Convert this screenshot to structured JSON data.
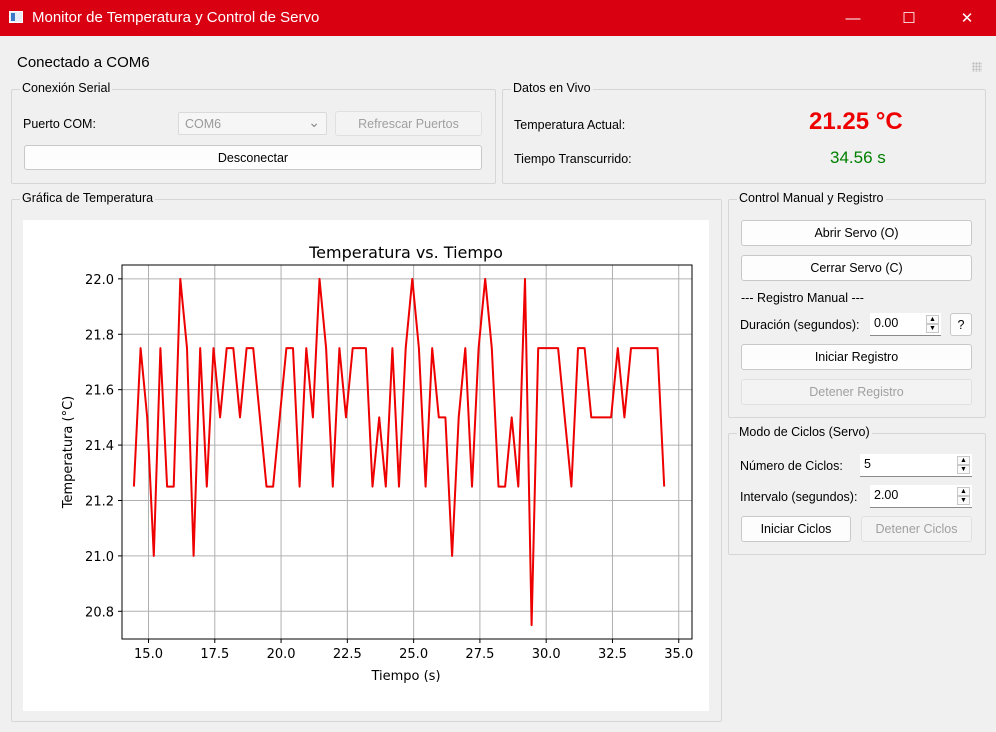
{
  "window": {
    "title": "Monitor de Temperatura y Control de Servo",
    "minimize": "—",
    "maximize": "☐",
    "close": "✕"
  },
  "status_text": "Conectado a COM6",
  "serial": {
    "title": "Conexión Serial",
    "port_label": "Puerto COM:",
    "port_value": "COM6",
    "refresh_label": "Refrescar Puertos",
    "disconnect_label": "Desconectar"
  },
  "live": {
    "title": "Datos en Vivo",
    "temp_label": "Temperatura Actual:",
    "temp_value": "21.25 °C",
    "time_label": "Tiempo Transcurrido:",
    "time_value": "34.56 s",
    "temp_color": "#ee0000",
    "time_color": "#008000"
  },
  "chart_group": {
    "title": "Gráfica de Temperatura"
  },
  "manual": {
    "title": "Control Manual y Registro",
    "open_label": "Abrir Servo (O)",
    "close_label": "Cerrar Servo (C)",
    "section_label": "--- Registro Manual ---",
    "duration_label": "Duración (segundos):",
    "duration_value": "0.00",
    "help_label": "?",
    "start_label": "Iniciar Registro",
    "stop_label": "Detener Registro"
  },
  "cycles": {
    "title": "Modo de Ciclos (Servo)",
    "count_label": "Número de Ciclos:",
    "count_value": "5",
    "interval_label": "Intervalo (segundos):",
    "interval_value": "2.00",
    "start_label": "Iniciar Ciclos",
    "stop_label": "Detener Ciclos"
  },
  "chart_data": {
    "type": "line",
    "title": "Temperatura vs. Tiempo",
    "xlabel": "Tiempo (s)",
    "ylabel": "Temperatura (°C)",
    "xlim": [
      14.0,
      35.5
    ],
    "ylim": [
      20.7,
      22.05
    ],
    "xticks": [
      "15.0",
      "17.5",
      "20.0",
      "22.5",
      "25.0",
      "27.5",
      "30.0",
      "32.5",
      "35.0"
    ],
    "yticks": [
      "20.8",
      "21.0",
      "21.2",
      "21.4",
      "21.6",
      "21.8",
      "22.0"
    ],
    "grid": true,
    "color": "#ee0000",
    "series": [
      {
        "x": [
          14.45,
          14.7,
          14.95,
          15.2,
          15.45,
          15.7,
          15.95,
          16.2,
          16.45,
          16.7,
          16.95,
          17.2,
          17.45,
          17.7,
          17.95,
          18.2,
          18.45,
          18.7,
          18.95,
          19.2,
          19.45,
          19.7,
          19.95,
          20.2,
          20.45,
          20.7,
          20.95,
          21.2,
          21.45,
          21.7,
          21.95,
          22.2,
          22.45,
          22.7,
          22.95,
          23.2,
          23.45,
          23.7,
          23.95,
          24.2,
          24.45,
          24.7,
          24.95,
          25.2,
          25.45,
          25.7,
          25.95,
          26.2,
          26.45,
          26.7,
          26.95,
          27.2,
          27.45,
          27.7,
          27.95,
          28.2,
          28.45,
          28.7,
          28.95,
          29.2,
          29.45,
          29.7,
          29.95,
          30.2,
          30.45,
          30.7,
          30.95,
          31.2,
          31.45,
          31.7,
          31.95,
          32.2,
          32.45,
          32.7,
          32.95,
          33.2,
          33.45,
          33.7,
          33.95,
          34.2,
          34.45
        ],
        "y": [
          21.25,
          21.75,
          21.5,
          21.0,
          21.75,
          21.25,
          21.25,
          22.0,
          21.75,
          21.0,
          21.75,
          21.25,
          21.75,
          21.5,
          21.75,
          21.75,
          21.5,
          21.75,
          21.75,
          21.5,
          21.25,
          21.25,
          21.5,
          21.75,
          21.75,
          21.25,
          21.75,
          21.5,
          22.0,
          21.75,
          21.25,
          21.75,
          21.5,
          21.75,
          21.75,
          21.75,
          21.25,
          21.5,
          21.25,
          21.75,
          21.25,
          21.75,
          22.0,
          21.75,
          21.25,
          21.75,
          21.5,
          21.5,
          21.0,
          21.5,
          21.75,
          21.25,
          21.75,
          22.0,
          21.75,
          21.25,
          21.25,
          21.5,
          21.25,
          22.0,
          20.75,
          21.75,
          21.75,
          21.75,
          21.75,
          21.5,
          21.25,
          21.75,
          21.75,
          21.5,
          21.5,
          21.5,
          21.5,
          21.75,
          21.5,
          21.75,
          21.75,
          21.75,
          21.75,
          21.75,
          21.25
        ]
      }
    ]
  }
}
